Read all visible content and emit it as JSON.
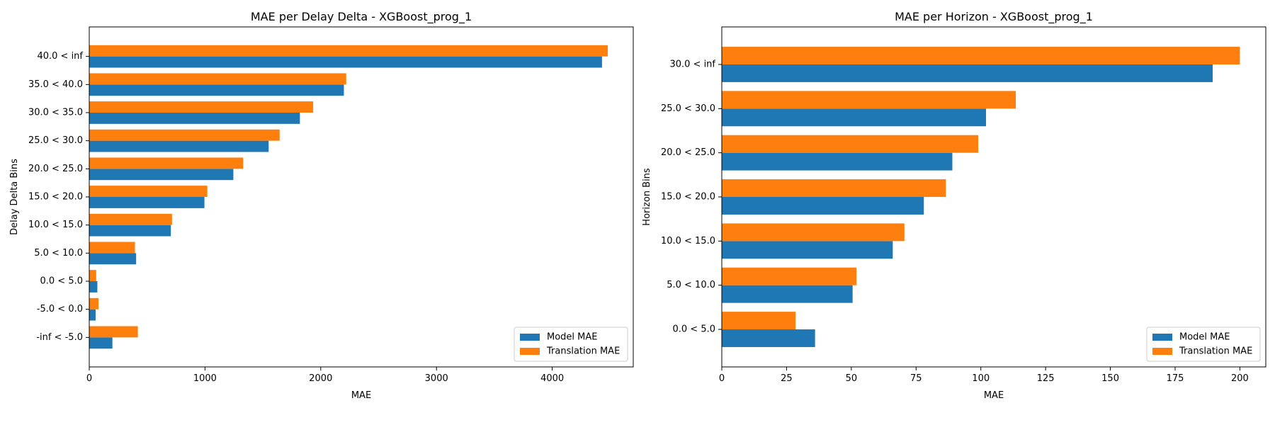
{
  "chart_data": [
    {
      "type": "bar",
      "orientation": "horizontal",
      "title": "MAE per Delay Delta - XGBoost_prog_1",
      "xlabel": "MAE",
      "ylabel": "Delay Delta Bins",
      "categories": [
        "-inf < -5.0",
        "-5.0 < 0.0",
        "0.0 < 5.0",
        "5.0 < 10.0",
        "10.0 < 15.0",
        "15.0 < 20.0",
        "20.0 < 25.0",
        "25.0 < 30.0",
        "30.0 < 35.0",
        "35.0 < 40.0",
        "40.0 < inf"
      ],
      "series": [
        {
          "name": "Model MAE",
          "color": "#1f77b4",
          "values": [
            200,
            55,
            70,
            405,
            705,
            995,
            1245,
            1550,
            1820,
            2200,
            4430
          ]
        },
        {
          "name": "Translation MAE",
          "color": "#ff7f0e",
          "values": [
            420,
            80,
            60,
            395,
            715,
            1020,
            1330,
            1645,
            1935,
            2220,
            4480
          ]
        }
      ],
      "xlim": [
        0,
        4700
      ],
      "xticks": [
        0,
        1000,
        2000,
        3000,
        4000
      ],
      "grid": false,
      "legend_position": "lower right"
    },
    {
      "type": "bar",
      "orientation": "horizontal",
      "title": "MAE per Horizon - XGBoost_prog_1",
      "xlabel": "MAE",
      "ylabel": "Horizon Bins",
      "categories": [
        "0.0 < 5.0",
        "5.0 < 10.0",
        "10.0 < 15.0",
        "15.0 < 20.0",
        "20.0 < 25.0",
        "25.0 < 30.0",
        "30.0 < inf"
      ],
      "series": [
        {
          "name": "Model MAE",
          "color": "#1f77b4",
          "values": [
            36,
            50.5,
            66,
            78,
            89,
            102,
            189.5
          ]
        },
        {
          "name": "Translation MAE",
          "color": "#ff7f0e",
          "values": [
            28.5,
            52,
            70.5,
            86.5,
            99,
            113.5,
            200
          ]
        }
      ],
      "xlim": [
        0,
        210
      ],
      "xticks": [
        0,
        25,
        50,
        75,
        100,
        125,
        150,
        175,
        200
      ],
      "grid": false,
      "legend_position": "lower right"
    }
  ]
}
